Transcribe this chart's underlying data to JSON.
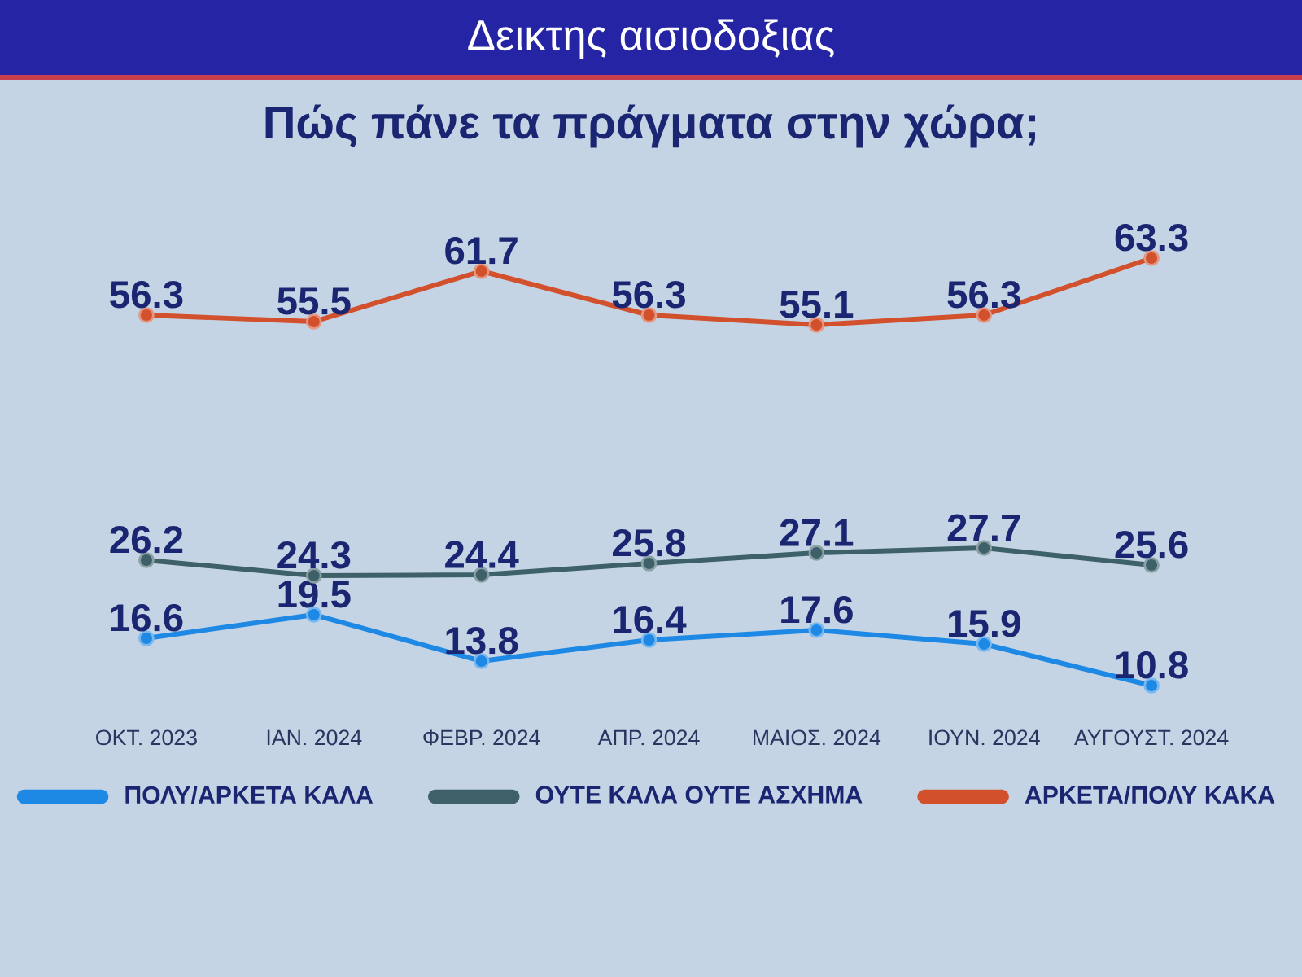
{
  "chart_data": {
    "type": "line",
    "title": "Δεικτης αισιοδοξιας",
    "subtitle": "Πώς πάνε τα πράγματα στην χώρα;",
    "categories": [
      "ΟΚΤ. 2023",
      "ΙΑΝ. 2024",
      "ΦΕΒΡ. 2024",
      "ΑΠΡ. 2024",
      "ΜΑΙΟΣ. 2024",
      "ΙΟΥΝ. 2024",
      "ΑΥΓΟΥΣΤ. 2024"
    ],
    "series": [
      {
        "name": "ΠΟΛΥ/ΑΡΚΕΤΑ ΚΑΛΑ",
        "color": "#1e88e5",
        "values": [
          16.6,
          19.5,
          13.8,
          16.4,
          17.6,
          15.9,
          10.8
        ]
      },
      {
        "name": "ΟΥΤΕ ΚΑΛΑ ΟΥΤΕ ΑΣΧΗΜΑ",
        "color": "#3e6068",
        "values": [
          26.2,
          24.3,
          24.4,
          25.8,
          27.1,
          27.7,
          25.6
        ]
      },
      {
        "name": "ΑΡΚΕΤΑ/ΠΟΛΥ ΚΑΚΑ",
        "color": "#d2502c",
        "values": [
          56.3,
          55.5,
          61.7,
          56.3,
          55.1,
          56.3,
          63.3
        ]
      }
    ],
    "data_labels": true,
    "legend": "bottom",
    "marker": "circle",
    "line_style": "solid",
    "tick_labels": "x"
  }
}
